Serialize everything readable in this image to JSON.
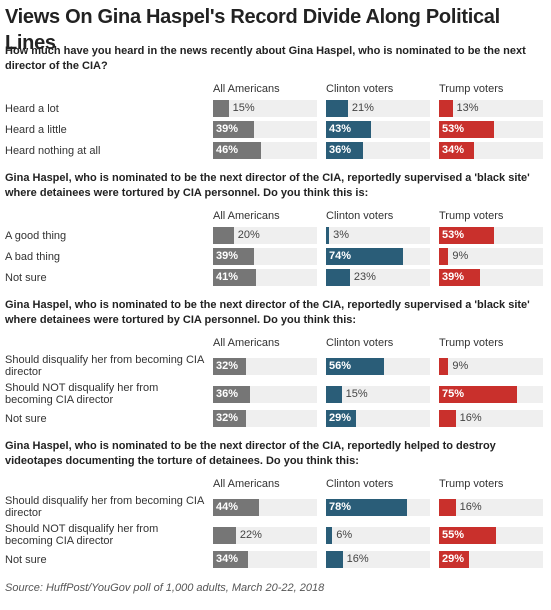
{
  "title": "Views On Gina Haspel's Record Divide Along Political Lines",
  "source": "Source: HuffPost/YouGov poll of 1,000 adults, March 20-22, 2018",
  "chart_data": [
    {
      "type": "bar",
      "title": "How much have you heard in the news recently about Gina Haspel, who is nominated to be the next director of the CIA?",
      "categories": [
        "Heard a lot",
        "Heard a little",
        "Heard nothing at all"
      ],
      "xlim": [
        0,
        100
      ],
      "series": [
        {
          "name": "All Americans",
          "color": "#767676",
          "values": [
            15,
            39,
            46
          ],
          "value_labels": [
            "15%",
            "39%",
            "46%"
          ]
        },
        {
          "name": "Clinton voters",
          "color": "#2a5d78",
          "values": [
            21,
            43,
            36
          ],
          "value_labels": [
            "21%",
            "43%",
            "36%"
          ]
        },
        {
          "name": "Trump voters",
          "color": "#c9302c",
          "values": [
            13,
            53,
            34
          ],
          "value_labels": [
            "13%",
            "53%",
            "34%"
          ]
        }
      ]
    },
    {
      "type": "bar",
      "title": "Gina Haspel, who is nominated to be the next director of the CIA, reportedly supervised a 'black site' where detainees were tortured by CIA personnel. Do you think this is:",
      "categories": [
        "A good thing",
        "A bad thing",
        "Not sure"
      ],
      "xlim": [
        0,
        100
      ],
      "series": [
        {
          "name": "All Americans",
          "color": "#767676",
          "values": [
            20,
            39,
            41
          ],
          "value_labels": [
            "20%",
            "39%",
            "41%"
          ]
        },
        {
          "name": "Clinton voters",
          "color": "#2a5d78",
          "values": [
            3,
            74,
            23
          ],
          "value_labels": [
            "3%",
            "74%",
            "23%"
          ]
        },
        {
          "name": "Trump voters",
          "color": "#c9302c",
          "values": [
            53,
            9,
            39
          ],
          "value_labels": [
            "53%",
            "9%",
            "39%"
          ]
        }
      ]
    },
    {
      "type": "bar",
      "title": "Gina Haspel, who is nominated to be the next director of the CIA, reportedly supervised a 'black site' where detainees were tortured by CIA personnel. Do you think this:",
      "categories": [
        "Should disqualify her from becoming CIA director",
        "Should NOT disqualify her from becoming CIA director",
        "Not sure"
      ],
      "xlim": [
        0,
        100
      ],
      "series": [
        {
          "name": "All Americans",
          "color": "#767676",
          "values": [
            32,
            36,
            32
          ],
          "value_labels": [
            "32%",
            "36%",
            "32%"
          ]
        },
        {
          "name": "Clinton voters",
          "color": "#2a5d78",
          "values": [
            56,
            15,
            29
          ],
          "value_labels": [
            "56%",
            "15%",
            "29%"
          ]
        },
        {
          "name": "Trump voters",
          "color": "#c9302c",
          "values": [
            9,
            75,
            16
          ],
          "value_labels": [
            "9%",
            "75%",
            "16%"
          ]
        }
      ]
    },
    {
      "type": "bar",
      "title": "Gina Haspel, who is nominated to be the next director of the CIA, reportedly helped to destroy videotapes documenting the torture of detainees. Do you think this:",
      "categories": [
        "Should disqualify her from becoming CIA director",
        "Should NOT disqualify her from becoming CIA director",
        "Not sure"
      ],
      "xlim": [
        0,
        100
      ],
      "series": [
        {
          "name": "All Americans",
          "color": "#767676",
          "values": [
            44,
            22,
            34
          ],
          "value_labels": [
            "44%",
            "22%",
            "34%"
          ]
        },
        {
          "name": "Clinton voters",
          "color": "#2a5d78",
          "values": [
            78,
            6,
            16
          ],
          "value_labels": [
            "78%",
            "6%",
            "16%"
          ]
        },
        {
          "name": "Trump voters",
          "color": "#c9302c",
          "values": [
            16,
            55,
            29
          ],
          "value_labels": [
            "16%",
            "55%",
            "29%"
          ]
        }
      ]
    }
  ]
}
